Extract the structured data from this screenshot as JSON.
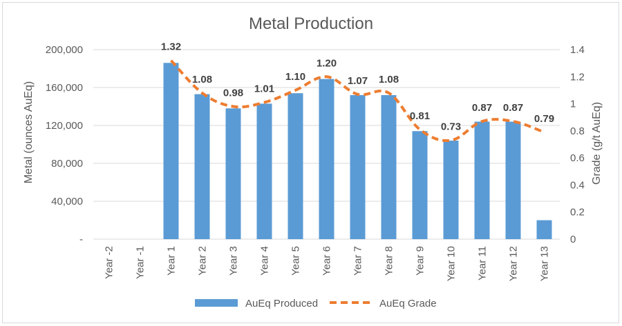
{
  "chart_data": {
    "type": "bar",
    "title": "Metal Production",
    "categories": [
      "Year -2",
      "Year -1",
      "Year 1",
      "Year 2",
      "Year 3",
      "Year 4",
      "Year 5",
      "Year 6",
      "Year 7",
      "Year 8",
      "Year 9",
      "Year 10",
      "Year 11",
      "Year 12",
      "Year 13"
    ],
    "series": [
      {
        "name": "AuEq Produced",
        "kind": "bar",
        "axis": "left",
        "color": "#5b9bd5",
        "values": [
          0,
          0,
          186000,
          153000,
          138000,
          143000,
          154000,
          169000,
          152000,
          152000,
          114000,
          104000,
          124000,
          124000,
          20000
        ]
      },
      {
        "name": "AuEq Grade",
        "kind": "line",
        "axis": "right",
        "style": "dashed",
        "color": "#ed7d31",
        "values": [
          null,
          null,
          1.32,
          1.08,
          0.98,
          1.01,
          1.1,
          1.2,
          1.07,
          1.08,
          0.81,
          0.73,
          0.87,
          0.87,
          0.79
        ],
        "labels": [
          "",
          "",
          "1.32",
          "1.08",
          "0.98",
          "1.01",
          "1.10",
          "1.20",
          "1.07",
          "1.08",
          "0.81",
          "0.73",
          "0.87",
          "0.87",
          "0.79"
        ]
      }
    ],
    "ylabel": "Metal (ounces AuEq)",
    "y2label": "Grade (g/t AuEq)",
    "ylim": [
      0,
      200000
    ],
    "y2lim": [
      0,
      1.4
    ],
    "yticks": [
      0,
      40000,
      80000,
      120000,
      160000,
      200000
    ],
    "ytick_labels": [
      "-",
      "40,000",
      "80,000",
      "120,000",
      "160,000",
      "200,000"
    ],
    "y2ticks": [
      0,
      0.2,
      0.4,
      0.6,
      0.8,
      1,
      1.2,
      1.4
    ],
    "y2tick_labels": [
      "0",
      "0.2",
      "0.4",
      "0.6",
      "0.8",
      "1",
      "1.2",
      "1.4"
    ],
    "grid": true,
    "legend": "bottom"
  }
}
